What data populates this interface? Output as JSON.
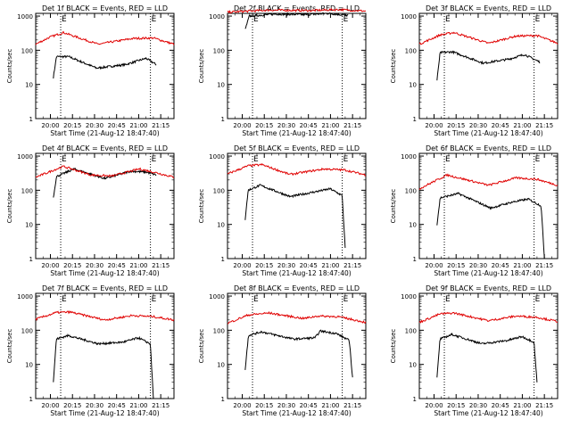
{
  "figure": {
    "xlabel": "Start Time (21-Aug-12 18:47:40)",
    "ylabel": "Counts/sec",
    "xticks": [
      "20:00",
      "20:15",
      "20:30",
      "20:45",
      "21:00",
      "21:15"
    ],
    "yticks": [
      "1",
      "10",
      "100",
      "1000"
    ]
  },
  "chart_data": [
    {
      "type": "line",
      "title": "Det 1f BLACK = Events, RED = LLD",
      "xlabel": "Start Time (21-Aug-12 18:47:40)",
      "ylabel": "Counts/sec",
      "xlim": [
        "19:50",
        "21:24"
      ],
      "ylim": [
        1,
        1200
      ],
      "markers": [
        {
          "label": "E",
          "time": "20:07"
        },
        {
          "label": "E",
          "time": "21:08"
        }
      ],
      "series": [
        {
          "name": "Events",
          "color": "#000000",
          "start": "20:02",
          "end": "21:12",
          "anchors": [
            [
              0,
              16
            ],
            [
              0.03,
              65
            ],
            [
              0.15,
              65
            ],
            [
              0.42,
              30
            ],
            [
              0.7,
              38
            ],
            [
              0.9,
              58
            ],
            [
              1,
              38
            ]
          ]
        },
        {
          "name": "LLD",
          "color": "#e00000",
          "start": "19:50",
          "end": "21:24",
          "anchors": [
            [
              0,
              150
            ],
            [
              0.1,
              240
            ],
            [
              0.2,
              330
            ],
            [
              0.45,
              150
            ],
            [
              0.7,
              220
            ],
            [
              0.85,
              230
            ],
            [
              1,
              150
            ]
          ]
        }
      ]
    },
    {
      "type": "line",
      "title": "Det 2f BLACK = Events, RED = LLD",
      "xlabel": "Start Time (21-Aug-12 18:47:40)",
      "ylabel": "Counts/sec",
      "xlim": [
        "19:50",
        "21:24"
      ],
      "ylim": [
        1,
        1200
      ],
      "markers": [
        {
          "label": "E",
          "time": "20:07"
        },
        {
          "label": "E",
          "time": "21:08"
        }
      ],
      "series": [
        {
          "name": "Events",
          "color": "#000000",
          "start": "20:02",
          "end": "21:12",
          "anchors": [
            [
              0,
              400
            ],
            [
              0.04,
              1000
            ],
            [
              0.3,
              1150
            ],
            [
              0.6,
              1100
            ],
            [
              0.8,
              1200
            ],
            [
              1,
              1050
            ]
          ]
        },
        {
          "name": "LLD",
          "color": "#e00000",
          "start": "19:50",
          "end": "21:24",
          "anchors": [
            [
              0,
              1300
            ],
            [
              0.3,
              1500
            ],
            [
              0.6,
              1450
            ],
            [
              0.8,
              1550
            ],
            [
              1,
              1400
            ]
          ]
        }
      ]
    },
    {
      "type": "line",
      "title": "Det 3f BLACK = Events, RED = LLD",
      "xlabel": "Start Time (21-Aug-12 18:47:40)",
      "ylabel": "Counts/sec",
      "xlim": [
        "19:50",
        "21:24"
      ],
      "ylim": [
        1,
        1200
      ],
      "markers": [
        {
          "label": "E",
          "time": "20:07"
        },
        {
          "label": "E",
          "time": "21:08"
        }
      ],
      "series": [
        {
          "name": "Events",
          "color": "#000000",
          "start": "20:02",
          "end": "21:12",
          "anchors": [
            [
              0,
              13
            ],
            [
              0.03,
              85
            ],
            [
              0.15,
              90
            ],
            [
              0.45,
              42
            ],
            [
              0.7,
              55
            ],
            [
              0.85,
              75
            ],
            [
              1,
              45
            ]
          ]
        },
        {
          "name": "LLD",
          "color": "#e00000",
          "start": "19:50",
          "end": "21:24",
          "anchors": [
            [
              0,
              150
            ],
            [
              0.15,
              280
            ],
            [
              0.25,
              330
            ],
            [
              0.5,
              160
            ],
            [
              0.7,
              260
            ],
            [
              0.85,
              270
            ],
            [
              1,
              160
            ]
          ]
        }
      ]
    },
    {
      "type": "line",
      "title": "Det 4f BLACK = Events, RED = LLD",
      "xlabel": "Start Time (21-Aug-12 18:47:40)",
      "ylabel": "Counts/sec",
      "xlim": [
        "19:50",
        "21:24"
      ],
      "ylim": [
        1,
        1200
      ],
      "markers": [
        {
          "label": "E",
          "time": "20:07"
        },
        {
          "label": "E",
          "time": "21:08"
        }
      ],
      "series": [
        {
          "name": "Events",
          "color": "#000000",
          "start": "20:02",
          "end": "21:12",
          "anchors": [
            [
              0,
              60
            ],
            [
              0.03,
              250
            ],
            [
              0.2,
              420
            ],
            [
              0.5,
              220
            ],
            [
              0.75,
              360
            ],
            [
              0.9,
              340
            ],
            [
              1,
              280
            ]
          ]
        },
        {
          "name": "LLD",
          "color": "#e00000",
          "start": "19:50",
          "end": "21:24",
          "anchors": [
            [
              0,
              240
            ],
            [
              0.2,
              500
            ],
            [
              0.4,
              280
            ],
            [
              0.55,
              260
            ],
            [
              0.75,
              420
            ],
            [
              0.88,
              320
            ],
            [
              1,
              240
            ]
          ]
        }
      ]
    },
    {
      "type": "line",
      "title": "Det 5f BLACK = Events, RED = LLD",
      "xlabel": "Start Time (21-Aug-12 18:47:40)",
      "ylabel": "Counts/sec",
      "xlim": [
        "19:50",
        "21:24"
      ],
      "ylim": [
        1,
        1200
      ],
      "markers": [
        {
          "label": "E",
          "time": "20:07"
        },
        {
          "label": "E",
          "time": "21:08"
        }
      ],
      "series": [
        {
          "name": "Events",
          "color": "#000000",
          "start": "20:02",
          "end": "21:10",
          "anchors": [
            [
              0,
              14
            ],
            [
              0.03,
              100
            ],
            [
              0.15,
              140
            ],
            [
              0.45,
              65
            ],
            [
              0.7,
              90
            ],
            [
              0.85,
              110
            ],
            [
              0.97,
              70
            ],
            [
              1,
              2
            ]
          ]
        },
        {
          "name": "LLD",
          "color": "#e00000",
          "start": "19:50",
          "end": "21:24",
          "anchors": [
            [
              0,
              300
            ],
            [
              0.15,
              520
            ],
            [
              0.25,
              560
            ],
            [
              0.45,
              290
            ],
            [
              0.7,
              420
            ],
            [
              0.85,
              390
            ],
            [
              1,
              280
            ]
          ]
        }
      ]
    },
    {
      "type": "line",
      "title": "Det 6f BLACK = Events, RED = LLD",
      "xlabel": "Start Time (21-Aug-12 18:47:40)",
      "ylabel": "Counts/sec",
      "xlim": [
        "19:50",
        "21:24"
      ],
      "ylim": [
        1,
        1200
      ],
      "markers": [
        {
          "label": "E",
          "time": "20:07"
        },
        {
          "label": "E",
          "time": "21:08"
        }
      ],
      "series": [
        {
          "name": "Events",
          "color": "#000000",
          "start": "20:02",
          "end": "21:15",
          "anchors": [
            [
              0,
              10
            ],
            [
              0.03,
              60
            ],
            [
              0.2,
              80
            ],
            [
              0.5,
              30
            ],
            [
              0.7,
              45
            ],
            [
              0.85,
              55
            ],
            [
              0.97,
              35
            ],
            [
              1,
              1
            ]
          ]
        },
        {
          "name": "LLD",
          "color": "#e00000",
          "start": "19:50",
          "end": "21:24",
          "anchors": [
            [
              0,
              110
            ],
            [
              0.2,
              280
            ],
            [
              0.5,
              140
            ],
            [
              0.7,
              230
            ],
            [
              0.85,
              210
            ],
            [
              1,
              140
            ]
          ]
        }
      ]
    },
    {
      "type": "line",
      "title": "Det 7f BLACK = Events, RED = LLD",
      "xlabel": "Start Time (21-Aug-12 18:47:40)",
      "ylabel": "Counts/sec",
      "xlim": [
        "19:50",
        "21:24"
      ],
      "ylim": [
        1,
        1200
      ],
      "markers": [
        {
          "label": "E",
          "time": "20:07"
        },
        {
          "label": "E",
          "time": "21:08"
        }
      ],
      "series": [
        {
          "name": "Events",
          "color": "#000000",
          "start": "20:02",
          "end": "21:10",
          "anchors": [
            [
              0,
              3
            ],
            [
              0.03,
              55
            ],
            [
              0.15,
              70
            ],
            [
              0.45,
              40
            ],
            [
              0.7,
              45
            ],
            [
              0.85,
              60
            ],
            [
              0.97,
              40
            ],
            [
              1,
              1
            ]
          ]
        },
        {
          "name": "LLD",
          "color": "#e00000",
          "start": "19:50",
          "end": "21:24",
          "anchors": [
            [
              0,
              210
            ],
            [
              0.15,
              330
            ],
            [
              0.25,
              340
            ],
            [
              0.5,
              200
            ],
            [
              0.7,
              270
            ],
            [
              0.85,
              250
            ],
            [
              1,
              200
            ]
          ]
        }
      ]
    },
    {
      "type": "line",
      "title": "Det 8f BLACK = Events, RED = LLD",
      "xlabel": "Start Time (21-Aug-12 18:47:40)",
      "ylabel": "Counts/sec",
      "xlim": [
        "19:50",
        "21:24"
      ],
      "ylim": [
        1,
        1200
      ],
      "markers": [
        {
          "label": "E",
          "time": "20:07"
        },
        {
          "label": "E",
          "time": "21:08"
        }
      ],
      "series": [
        {
          "name": "Events",
          "color": "#000000",
          "start": "20:02",
          "end": "21:15",
          "anchors": [
            [
              0,
              7
            ],
            [
              0.03,
              70
            ],
            [
              0.15,
              90
            ],
            [
              0.45,
              55
            ],
            [
              0.65,
              60
            ],
            [
              0.7,
              95
            ],
            [
              0.85,
              80
            ],
            [
              0.97,
              50
            ],
            [
              1,
              4
            ]
          ]
        },
        {
          "name": "LLD",
          "color": "#e00000",
          "start": "19:50",
          "end": "21:24",
          "anchors": [
            [
              0,
              160
            ],
            [
              0.15,
              280
            ],
            [
              0.3,
              320
            ],
            [
              0.55,
              220
            ],
            [
              0.65,
              260
            ],
            [
              0.8,
              250
            ],
            [
              1,
              170
            ]
          ]
        }
      ]
    },
    {
      "type": "line",
      "title": "Det 9f BLACK = Events, RED = LLD",
      "xlabel": "Start Time (21-Aug-12 18:47:40)",
      "ylabel": "Counts/sec",
      "xlim": [
        "19:50",
        "21:24"
      ],
      "ylim": [
        1,
        1200
      ],
      "markers": [
        {
          "label": "E",
          "time": "20:07"
        },
        {
          "label": "E",
          "time": "21:08"
        }
      ],
      "series": [
        {
          "name": "Events",
          "color": "#000000",
          "start": "20:02",
          "end": "21:10",
          "anchors": [
            [
              0,
              4
            ],
            [
              0.03,
              55
            ],
            [
              0.15,
              75
            ],
            [
              0.45,
              40
            ],
            [
              0.7,
              50
            ],
            [
              0.85,
              65
            ],
            [
              0.97,
              45
            ],
            [
              1,
              3
            ]
          ]
        },
        {
          "name": "LLD",
          "color": "#e00000",
          "start": "19:50",
          "end": "21:24",
          "anchors": [
            [
              0,
              170
            ],
            [
              0.15,
              300
            ],
            [
              0.25,
              320
            ],
            [
              0.5,
              190
            ],
            [
              0.7,
              260
            ],
            [
              0.85,
              240
            ],
            [
              1,
              180
            ]
          ]
        }
      ]
    }
  ]
}
